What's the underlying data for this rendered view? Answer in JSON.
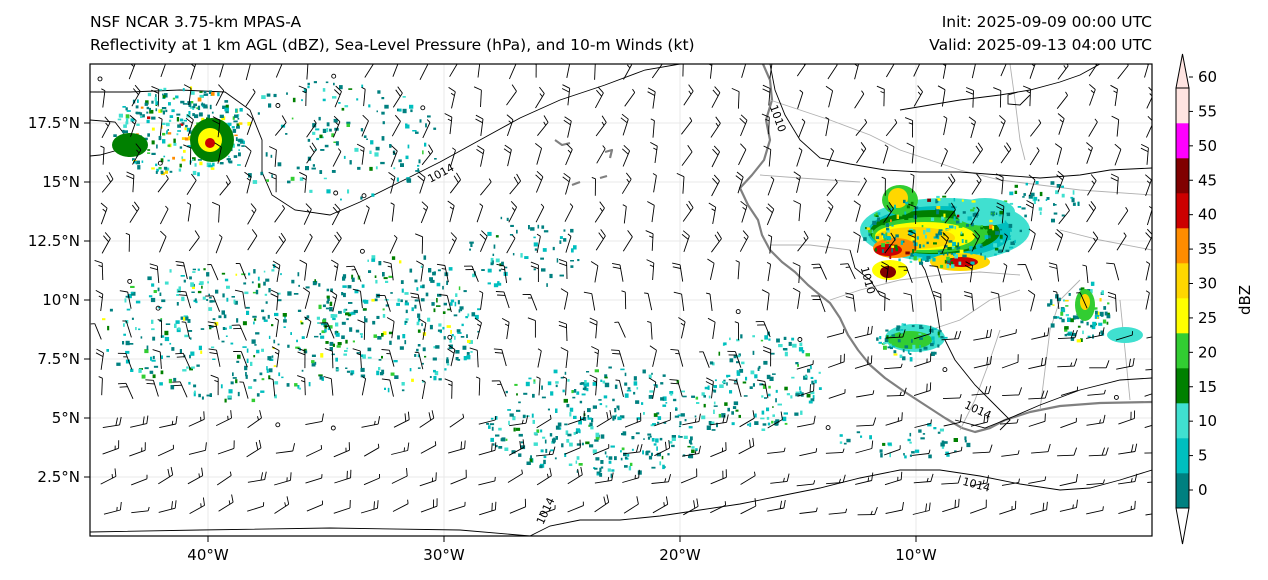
{
  "header": {
    "title": "NSF NCAR 3.75-km MPAS-A",
    "subtitle": "Reflectivity at 1 km AGL (dBZ), Sea-Level Pressure (hPa), and 10-m Winds (kt)",
    "init": "Init: 2025-09-09 00:00 UTC",
    "valid": "Valid: 2025-09-13 04:00 UTC"
  },
  "axes": {
    "lon_range": [
      -45,
      0
    ],
    "lat_range": [
      0,
      20
    ],
    "lon_ticks": [
      {
        "value": -40,
        "label": "40°W"
      },
      {
        "value": -30,
        "label": "30°W"
      },
      {
        "value": -20,
        "label": "20°W"
      },
      {
        "value": -10,
        "label": "10°W"
      }
    ],
    "lat_ticks": [
      {
        "value": 2.5,
        "label": "2.5°N"
      },
      {
        "value": 5,
        "label": "5°N"
      },
      {
        "value": 7.5,
        "label": "7.5°N"
      },
      {
        "value": 10,
        "label": "10°N"
      },
      {
        "value": 12.5,
        "label": "12.5°N"
      },
      {
        "value": 15,
        "label": "15°N"
      },
      {
        "value": 17.5,
        "label": "17.5°N"
      }
    ]
  },
  "colorbar": {
    "label": "dBZ",
    "ticks": [
      "0",
      "5",
      "10",
      "15",
      "20",
      "25",
      "30",
      "35",
      "40",
      "45",
      "50",
      "55",
      "60"
    ],
    "colors": [
      "#008080",
      "#00bfbf",
      "#40e0d0",
      "#008000",
      "#32cd32",
      "#ffff00",
      "#ffd700",
      "#ff8c00",
      "#cc0000",
      "#800000",
      "#ff00ff",
      "#ffe4e1"
    ]
  },
  "isobar_labels": [
    "1014",
    "1014",
    "1014",
    "1014",
    "1010",
    "1010"
  ],
  "colors": {
    "coastline": "#808080",
    "borders": "#a0a0a0",
    "isobar": "#000000",
    "barb": "#000000"
  }
}
